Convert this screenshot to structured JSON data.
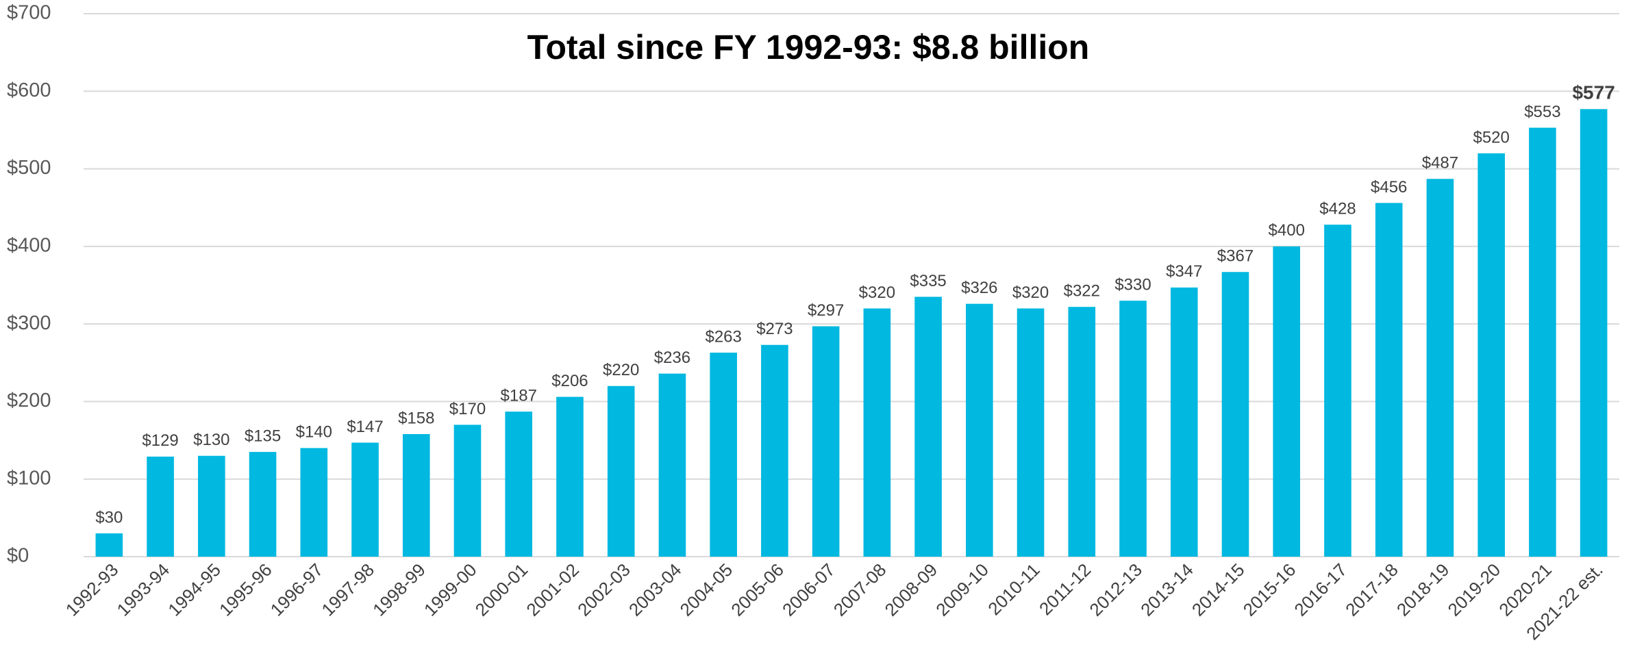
{
  "chart_data": {
    "type": "bar",
    "title": "Total since FY 1992-93:  $8.8 billion",
    "categories": [
      "1992-93",
      "1993-94",
      "1994-95",
      "1995-96",
      "1996-97",
      "1997-98",
      "1998-99",
      "1999-00",
      "2000-01",
      "2001-02",
      "2002-03",
      "2003-04",
      "2004-05",
      "2005-06",
      "2006-07",
      "2007-08",
      "2008-09",
      "2009-10",
      "2010-11",
      "2011-12",
      "2012-13",
      "2013-14",
      "2014-15",
      "2015-16",
      "2016-17",
      "2017-18",
      "2018-19",
      "2019-20",
      "2020-21",
      "2021-22 est."
    ],
    "values": [
      30,
      129,
      130,
      135,
      140,
      147,
      158,
      170,
      187,
      206,
      220,
      236,
      263,
      273,
      297,
      320,
      335,
      326,
      320,
      322,
      330,
      347,
      367,
      400,
      428,
      456,
      487,
      520,
      553,
      577
    ],
    "value_labels": [
      "$30",
      "$129",
      "$130",
      "$135",
      "$140",
      "$147",
      "$158",
      "$170",
      "$187",
      "$206",
      "$220",
      "$236",
      "$263",
      "$273",
      "$297",
      "$320",
      "$335",
      "$326",
      "$320",
      "$322",
      "$330",
      "$347",
      "$367",
      "$400",
      "$428",
      "$456",
      "$487",
      "$520",
      "$553",
      "$577"
    ],
    "color": "#00b8e0",
    "ylim": [
      0,
      700
    ],
    "yticks": [
      {
        "value": 0,
        "label": "$0"
      },
      {
        "value": 100,
        "label": "$100"
      },
      {
        "value": 200,
        "label": "$200"
      },
      {
        "value": 300,
        "label": "$300"
      },
      {
        "value": 400,
        "label": "$400"
      },
      {
        "value": 500,
        "label": "$500"
      },
      {
        "value": 600,
        "label": "$600"
      },
      {
        "value": 700,
        "label": "$700"
      }
    ],
    "grid": true
  }
}
